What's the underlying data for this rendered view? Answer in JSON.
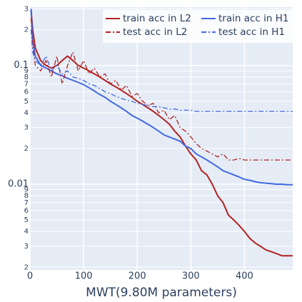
{
  "chart_data": {
    "type": "line",
    "x_label": "MWT(9.80M parameters)",
    "xlim": [
      0,
      490
    ],
    "xticks": [
      0,
      100,
      200,
      300,
      400
    ],
    "ylim": [
      0.0019,
      0.31
    ],
    "log_y": true,
    "grid": true,
    "legend": "upper right",
    "yticks": [
      {
        "value": 0.3,
        "label": "3"
      },
      {
        "value": 0.2,
        "label": "2"
      },
      0.1,
      {
        "value": 0.09,
        "label": "9"
      },
      {
        "value": 0.08,
        "label": "8"
      },
      {
        "value": 0.07,
        "label": "7"
      },
      {
        "value": 0.06,
        "label": "6"
      },
      {
        "value": 0.05,
        "label": "5"
      },
      {
        "value": 0.04,
        "label": "4"
      },
      {
        "value": 0.03,
        "label": "3"
      },
      {
        "value": 0.02,
        "label": "2"
      },
      0.01,
      {
        "value": 0.009,
        "label": "9"
      },
      {
        "value": 0.008,
        "label": "8"
      },
      {
        "value": 0.007,
        "label": "7"
      },
      {
        "value": 0.006,
        "label": "6"
      },
      {
        "value": 0.005,
        "label": "5"
      },
      {
        "value": 0.004,
        "label": "4"
      },
      {
        "value": 0.003,
        "label": "3"
      },
      {
        "value": 0.002,
        "label": "2"
      }
    ],
    "x": [
      2,
      5,
      10,
      20,
      30,
      40,
      50,
      60,
      70,
      80,
      90,
      100,
      110,
      120,
      130,
      140,
      150,
      160,
      170,
      180,
      190,
      200,
      210,
      220,
      230,
      240,
      250,
      260,
      270,
      280,
      290,
      300,
      310,
      320,
      330,
      340,
      350,
      360,
      370,
      380,
      390,
      400,
      410,
      420,
      430,
      440,
      450,
      460,
      470,
      480,
      490
    ],
    "series": [
      {
        "name": "train acc in L2",
        "color": "#b22222",
        "dash": "solid",
        "values": [
          0.3,
          0.2,
          0.14,
          0.11,
          0.1,
          0.095,
          0.1,
          0.11,
          0.12,
          0.11,
          0.1,
          0.095,
          0.09,
          0.085,
          0.08,
          0.075,
          0.07,
          0.066,
          0.062,
          0.058,
          0.054,
          0.05,
          0.047,
          0.044,
          0.041,
          0.038,
          0.035,
          0.032,
          0.028,
          0.025,
          0.021,
          0.018,
          0.016,
          0.013,
          0.012,
          0.01,
          0.008,
          0.007,
          0.0055,
          0.005,
          0.0045,
          0.004,
          0.0035,
          0.0032,
          0.003,
          0.0028,
          0.0027,
          0.0026,
          0.0025,
          0.0025,
          0.0025
        ]
      },
      {
        "name": "train acc in H1",
        "color": "#4169e1",
        "dash": "solid",
        "values": [
          0.3,
          0.16,
          0.12,
          0.1,
          0.095,
          0.09,
          0.085,
          0.082,
          0.078,
          0.075,
          0.072,
          0.069,
          0.065,
          0.061,
          0.057,
          0.054,
          0.05,
          0.047,
          0.044,
          0.041,
          0.038,
          0.036,
          0.034,
          0.032,
          0.03,
          0.028,
          0.026,
          0.025,
          0.024,
          0.023,
          0.021,
          0.02,
          0.018,
          0.017,
          0.016,
          0.015,
          0.014,
          0.013,
          0.0125,
          0.012,
          0.0115,
          0.011,
          0.0108,
          0.0105,
          0.0103,
          0.0102,
          0.0101,
          0.01,
          0.01,
          0.0099,
          0.0099
        ]
      },
      {
        "name": "test acc in L2",
        "color": "#b22222",
        "dash": "dashdot",
        "values": [
          0.25,
          0.15,
          0.1,
          0.09,
          0.11,
          0.08,
          0.12,
          0.07,
          0.1,
          0.13,
          0.09,
          0.11,
          0.085,
          0.095,
          0.08,
          0.085,
          0.07,
          0.075,
          0.062,
          0.068,
          0.055,
          0.058,
          0.05,
          0.046,
          0.048,
          0.04,
          0.042,
          0.035,
          0.038,
          0.03,
          0.028,
          0.025,
          0.022,
          0.02,
          0.019,
          0.018,
          0.017,
          0.018,
          0.016,
          0.016,
          0.0165,
          0.016,
          0.016,
          0.016,
          0.016,
          0.016,
          0.016,
          0.016,
          0.016,
          0.016,
          0.016
        ]
      },
      {
        "name": "test acc in H1",
        "color": "#4169e1",
        "dash": "dashdot",
        "values": [
          0.2,
          0.13,
          0.11,
          0.1,
          0.12,
          0.09,
          0.1,
          0.085,
          0.09,
          0.08,
          0.078,
          0.075,
          0.07,
          0.068,
          0.064,
          0.06,
          0.058,
          0.055,
          0.053,
          0.051,
          0.05,
          0.048,
          0.047,
          0.046,
          0.045,
          0.045,
          0.044,
          0.043,
          0.043,
          0.042,
          0.042,
          0.042,
          0.041,
          0.041,
          0.041,
          0.041,
          0.041,
          0.041,
          0.041,
          0.041,
          0.041,
          0.041,
          0.041,
          0.041,
          0.041,
          0.041,
          0.041,
          0.041,
          0.041,
          0.041,
          0.041
        ]
      }
    ]
  }
}
